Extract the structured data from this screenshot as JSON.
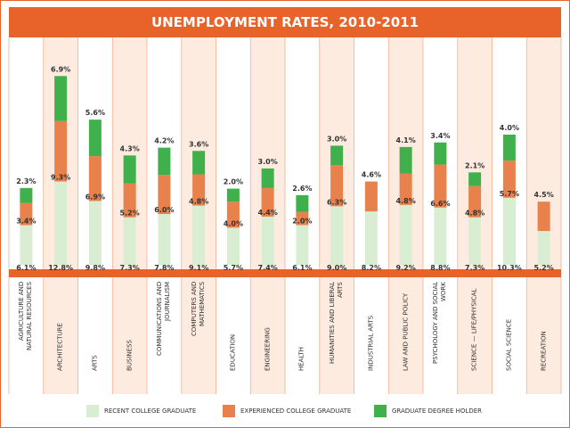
{
  "chart_data": {
    "type": "stacked_bar",
    "title": "UNEMPLOYMENT RATES, 2010-2011",
    "categories": [
      "Agriculture and Natural Resources",
      "Architecture",
      "Arts",
      "Business",
      "Communications and Journalism",
      "Computers and Mathematics",
      "Education",
      "Engineering",
      "Health",
      "Humanities and Liberal Arts",
      "Industrial Arts",
      "Law and Public Policy",
      "Psychology and Social Work",
      "Science — Life/Physical",
      "Social Science",
      "Recreation"
    ],
    "series": [
      {
        "name": "Recent College Graduate",
        "color": "#d9edd3",
        "values": [
          6.1,
          12.8,
          9.8,
          7.3,
          7.8,
          9.1,
          5.7,
          7.4,
          6.1,
          9.0,
          8.2,
          9.2,
          8.8,
          7.3,
          10.3,
          5.2
        ],
        "value_labels": [
          "6.1%",
          "12.8%",
          "9.8%",
          "7.3%",
          "7.8%",
          "9.1%",
          "5.7%",
          "7.4%",
          "6.1%",
          "9.0%",
          "8.2%",
          "9.2%",
          "8.8%",
          "7.3%",
          "10.3%",
          "5.2%"
        ]
      },
      {
        "name": "Experienced College Graduate",
        "color": "#e8814b",
        "values": [
          3.4,
          9.3,
          6.9,
          5.2,
          6.0,
          4.8,
          4.0,
          4.4,
          2.0,
          6.3,
          4.6,
          4.8,
          6.6,
          4.8,
          5.7,
          4.5
        ],
        "value_labels": [
          "3.4%",
          "9.3%",
          "6.9%",
          "5.2%",
          "6.0%",
          "4.8%",
          "4.0%",
          "4.4%",
          "2.0%",
          "6.3%",
          "4.6%",
          "4.8%",
          "6.6%",
          "4.8%",
          "5.7%",
          "4.5%"
        ]
      },
      {
        "name": "Graduate Degree Holder",
        "color": "#3fb04b",
        "values": [
          2.3,
          6.9,
          5.6,
          4.3,
          4.2,
          3.6,
          2.0,
          3.0,
          2.6,
          3.0,
          null,
          4.1,
          3.4,
          2.1,
          4.0,
          null
        ],
        "value_labels": [
          "2.3%",
          "6.9%",
          "5.6%",
          "4.3%",
          "4.2%",
          "3.6%",
          "2.0%",
          "3.0%",
          "2.6%",
          "3.0%",
          null,
          "4.1%",
          "3.4%",
          "2.1%",
          "4.0%",
          null
        ]
      }
    ]
  }
}
